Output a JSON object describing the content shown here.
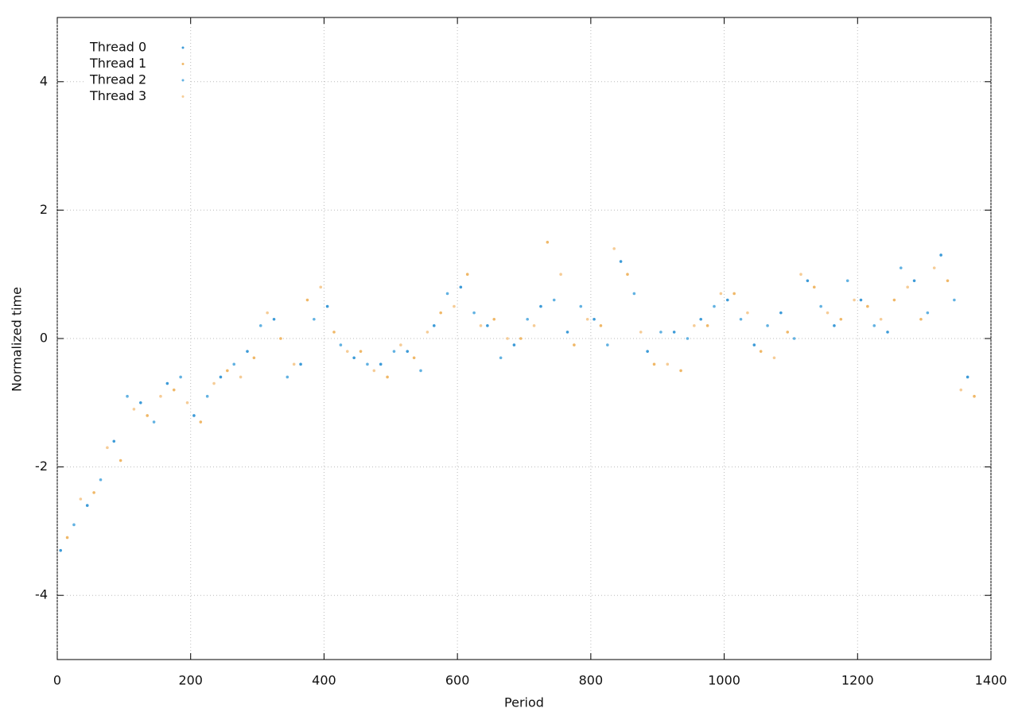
{
  "chart_data": {
    "type": "scatter",
    "xlabel": "Period",
    "ylabel": "Normalized time",
    "xlim": [
      0,
      1400
    ],
    "xticks": [
      0,
      200,
      400,
      600,
      800,
      1000,
      1200,
      1400
    ],
    "ylim": [
      -5,
      5
    ],
    "yticks": [
      -4,
      -2,
      0,
      2,
      4
    ],
    "grid": true,
    "legend": "upper left",
    "series": [
      {
        "name": "Thread 0",
        "color": "#3d9bd8",
        "x": [
          5,
          45,
          85,
          125,
          165,
          205,
          245,
          285,
          325,
          365,
          405,
          445,
          485,
          525,
          565,
          605,
          645,
          685,
          725,
          765,
          805,
          845,
          885,
          925,
          965,
          1005,
          1045,
          1085,
          1125,
          1165,
          1205,
          1245,
          1285,
          1325,
          1365
        ],
        "values": [
          -3.3,
          -2.6,
          -1.6,
          -1.0,
          -0.7,
          -1.2,
          -0.6,
          -0.2,
          0.3,
          -0.4,
          0.5,
          -0.3,
          -0.4,
          -0.2,
          0.2,
          0.8,
          0.2,
          -0.1,
          0.5,
          0.1,
          0.3,
          1.2,
          -0.2,
          0.1,
          0.3,
          0.6,
          -0.1,
          0.4,
          0.9,
          0.2,
          0.6,
          0.1,
          0.9,
          1.3,
          -0.6
        ]
      },
      {
        "name": "Thread 1",
        "color": "#f0b868",
        "x": [
          15,
          55,
          95,
          135,
          175,
          215,
          255,
          295,
          335,
          375,
          415,
          455,
          495,
          535,
          575,
          615,
          655,
          695,
          735,
          775,
          815,
          855,
          895,
          935,
          975,
          1015,
          1055,
          1095,
          1135,
          1175,
          1215,
          1255,
          1295,
          1335,
          1375
        ],
        "values": [
          -3.1,
          -2.4,
          -1.9,
          -1.2,
          -0.8,
          -1.3,
          -0.5,
          -0.3,
          0.0,
          0.6,
          0.1,
          -0.2,
          -0.6,
          -0.3,
          0.4,
          1.0,
          0.3,
          0.0,
          1.5,
          -0.1,
          0.2,
          1.0,
          -0.4,
          -0.5,
          0.2,
          0.7,
          -0.2,
          0.1,
          0.8,
          0.3,
          0.5,
          0.6,
          0.3,
          0.9,
          -0.9
        ]
      },
      {
        "name": "Thread 2",
        "color": "#62b2e2",
        "x": [
          25,
          65,
          105,
          145,
          185,
          225,
          265,
          305,
          345,
          385,
          425,
          465,
          505,
          545,
          585,
          625,
          665,
          705,
          745,
          785,
          825,
          865,
          905,
          945,
          985,
          1025,
          1065,
          1105,
          1145,
          1185,
          1225,
          1265,
          1305,
          1345
        ],
        "values": [
          -2.9,
          -2.2,
          -0.9,
          -1.3,
          -0.6,
          -0.9,
          -0.4,
          0.2,
          -0.6,
          0.3,
          -0.1,
          -0.4,
          -0.2,
          -0.5,
          0.7,
          0.4,
          -0.3,
          0.3,
          0.6,
          0.5,
          -0.1,
          0.7,
          0.1,
          0.0,
          0.5,
          0.3,
          0.2,
          0.0,
          0.5,
          0.9,
          0.2,
          1.1,
          0.4,
          0.6
        ]
      },
      {
        "name": "Thread 3",
        "color": "#f6cc96",
        "x": [
          35,
          75,
          115,
          155,
          195,
          235,
          275,
          315,
          355,
          395,
          435,
          475,
          515,
          555,
          595,
          635,
          675,
          715,
          755,
          795,
          835,
          875,
          915,
          955,
          995,
          1035,
          1075,
          1115,
          1155,
          1195,
          1235,
          1275,
          1315,
          1355
        ],
        "values": [
          -2.5,
          -1.7,
          -1.1,
          -0.9,
          -1.0,
          -0.7,
          -0.6,
          0.4,
          -0.4,
          0.8,
          -0.2,
          -0.5,
          -0.1,
          0.1,
          0.5,
          0.2,
          0.0,
          0.2,
          1.0,
          0.3,
          1.4,
          0.1,
          -0.4,
          0.2,
          0.7,
          0.4,
          -0.3,
          1.0,
          0.4,
          0.6,
          0.3,
          0.8,
          1.1,
          -0.8
        ]
      }
    ]
  }
}
